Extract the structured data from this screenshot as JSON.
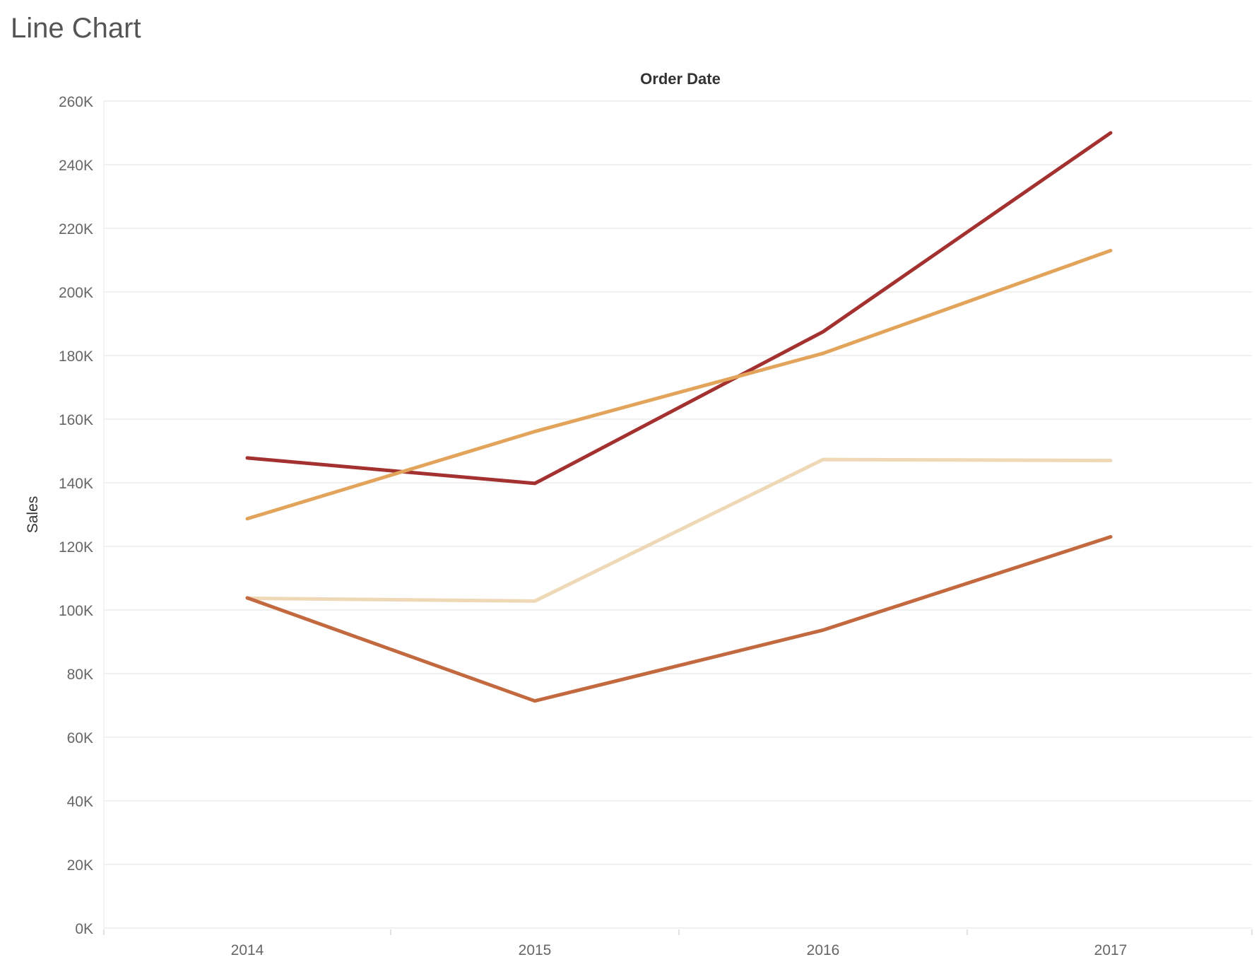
{
  "chart_data": {
    "type": "line",
    "title": "Line Chart",
    "xlabel": "Order Date",
    "ylabel": "Sales",
    "x": [
      "2014",
      "2015",
      "2016",
      "2017"
    ],
    "ylim": [
      0,
      260000
    ],
    "y_ticks": [
      0,
      20000,
      40000,
      60000,
      80000,
      100000,
      120000,
      140000,
      160000,
      180000,
      200000,
      220000,
      240000,
      260000
    ],
    "y_tick_labels": [
      "0K",
      "20K",
      "40K",
      "60K",
      "80K",
      "100K",
      "120K",
      "140K",
      "160K",
      "180K",
      "200K",
      "220K",
      "240K",
      "260K"
    ],
    "grid": true,
    "legend": "none",
    "series": [
      {
        "color": "#A3312F",
        "values": [
          147800,
          139800,
          187500,
          250000
        ]
      },
      {
        "color": "#E2A45A",
        "values": [
          128700,
          156100,
          180700,
          213000
        ]
      },
      {
        "color": "#EED8B6",
        "values": [
          103700,
          102800,
          147300,
          147000
        ]
      },
      {
        "color": "#C3693F",
        "values": [
          103800,
          71400,
          93700,
          123000
        ]
      }
    ]
  }
}
